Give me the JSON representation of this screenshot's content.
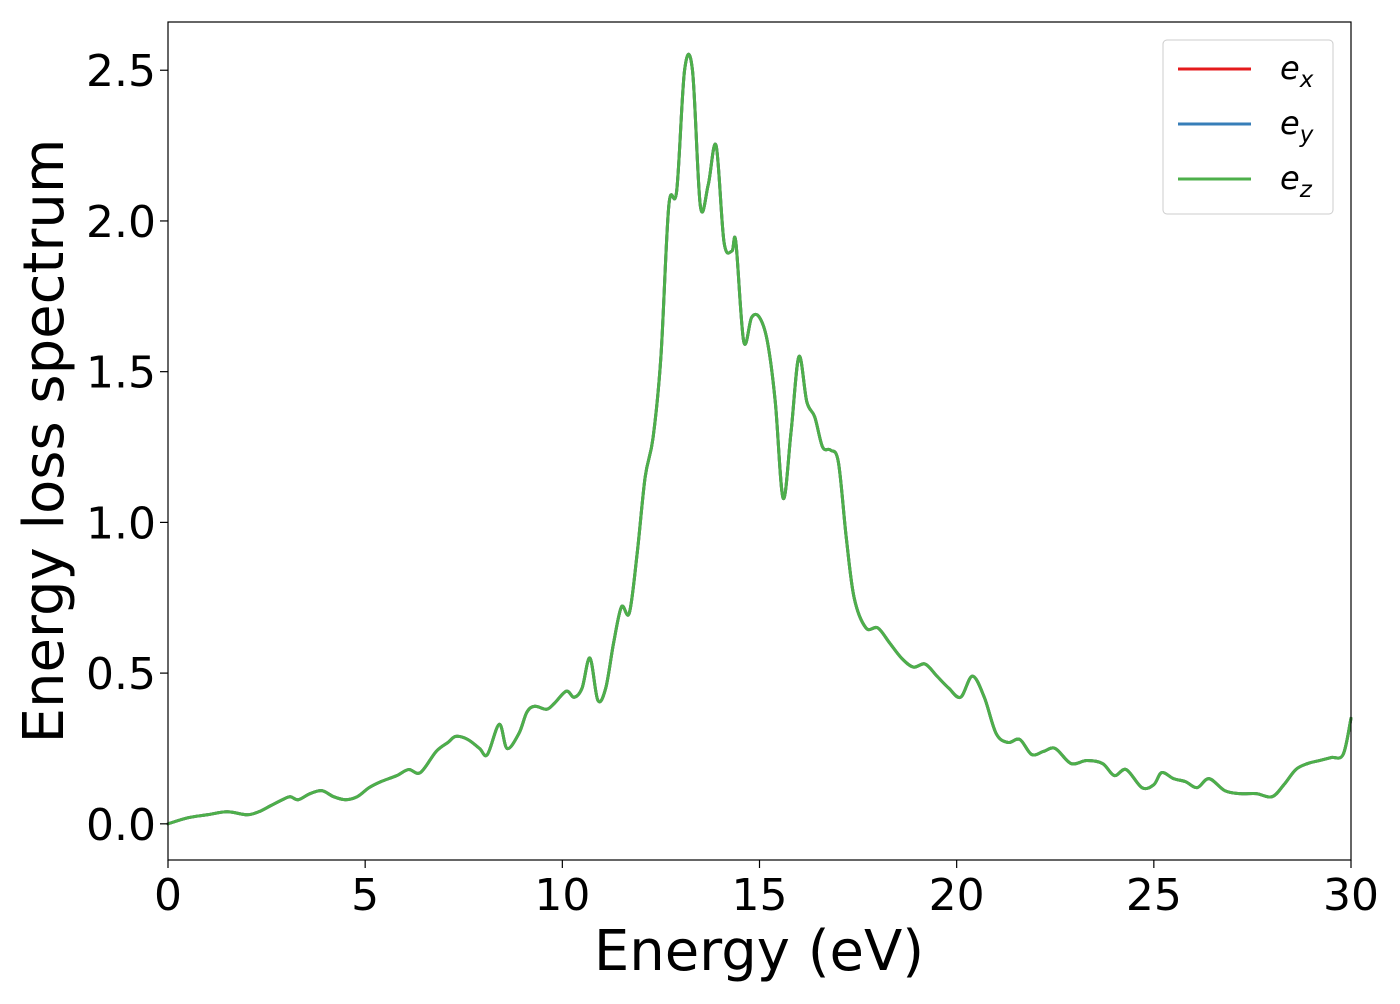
{
  "chart_data": {
    "type": "line",
    "title": "",
    "xlabel": "Energy (eV)",
    "ylabel": "Energy loss spectrum",
    "xlim": [
      0,
      30
    ],
    "ylim": [
      -0.12,
      2.66
    ],
    "xticks": [
      0,
      5,
      10,
      15,
      20,
      25,
      30
    ],
    "xtick_labels": [
      "0",
      "5",
      "10",
      "15",
      "20",
      "25",
      "30"
    ],
    "yticks": [
      0.0,
      0.5,
      1.0,
      1.5,
      2.0,
      2.5
    ],
    "ytick_labels": [
      "0.0",
      "0.5",
      "1.0",
      "1.5",
      "2.0",
      "2.5"
    ],
    "grid": false,
    "legend_position": "top-right",
    "x": [
      0,
      0.5,
      1.0,
      1.5,
      2.0,
      2.3,
      2.6,
      2.9,
      3.1,
      3.3,
      3.6,
      3.9,
      4.2,
      4.5,
      4.8,
      5.1,
      5.4,
      5.8,
      6.1,
      6.4,
      6.8,
      7.1,
      7.3,
      7.6,
      7.9,
      8.1,
      8.4,
      8.6,
      8.9,
      9.1,
      9.3,
      9.6,
      9.8,
      10.1,
      10.3,
      10.5,
      10.7,
      10.9,
      11.1,
      11.3,
      11.5,
      11.7,
      11.9,
      12.1,
      12.3,
      12.5,
      12.7,
      12.9,
      13.1,
      13.3,
      13.5,
      13.7,
      13.9,
      14.1,
      14.3,
      14.4,
      14.6,
      14.8,
      15.0,
      15.2,
      15.4,
      15.6,
      15.8,
      16.0,
      16.2,
      16.4,
      16.6,
      16.8,
      17.0,
      17.2,
      17.4,
      17.7,
      18.0,
      18.3,
      18.6,
      18.9,
      19.2,
      19.5,
      19.8,
      20.1,
      20.4,
      20.7,
      21.0,
      21.3,
      21.6,
      21.9,
      22.2,
      22.5,
      22.9,
      23.3,
      23.7,
      24.0,
      24.3,
      24.7,
      25.0,
      25.2,
      25.5,
      25.8,
      26.1,
      26.4,
      26.8,
      27.2,
      27.6,
      28.0,
      28.3,
      28.6,
      28.9,
      29.2,
      29.5,
      29.8,
      30.0
    ],
    "series": [
      {
        "name": "e_x",
        "legend": {
          "base": "e",
          "sub": "x"
        },
        "color": "#e41a1c",
        "values": [
          0.0,
          0.02,
          0.03,
          0.04,
          0.03,
          0.04,
          0.06,
          0.08,
          0.09,
          0.08,
          0.1,
          0.11,
          0.09,
          0.08,
          0.09,
          0.12,
          0.14,
          0.16,
          0.18,
          0.17,
          0.24,
          0.27,
          0.29,
          0.28,
          0.25,
          0.23,
          0.33,
          0.25,
          0.3,
          0.37,
          0.39,
          0.38,
          0.4,
          0.44,
          0.42,
          0.45,
          0.55,
          0.41,
          0.45,
          0.6,
          0.72,
          0.7,
          0.9,
          1.15,
          1.28,
          1.55,
          2.05,
          2.1,
          2.5,
          2.5,
          2.05,
          2.12,
          2.25,
          1.93,
          1.9,
          1.93,
          1.6,
          1.68,
          1.68,
          1.6,
          1.4,
          1.08,
          1.3,
          1.55,
          1.4,
          1.35,
          1.25,
          1.24,
          1.2,
          0.95,
          0.75,
          0.65,
          0.65,
          0.6,
          0.55,
          0.52,
          0.53,
          0.49,
          0.45,
          0.42,
          0.49,
          0.42,
          0.3,
          0.27,
          0.28,
          0.23,
          0.24,
          0.25,
          0.2,
          0.21,
          0.2,
          0.16,
          0.18,
          0.12,
          0.13,
          0.17,
          0.15,
          0.14,
          0.12,
          0.15,
          0.11,
          0.1,
          0.1,
          0.09,
          0.13,
          0.18,
          0.2,
          0.21,
          0.22,
          0.23,
          0.35
        ]
      },
      {
        "name": "e_y",
        "legend": {
          "base": "e",
          "sub": "y"
        },
        "color": "#377eb8",
        "values": [
          0.0,
          0.02,
          0.03,
          0.04,
          0.03,
          0.04,
          0.06,
          0.08,
          0.09,
          0.08,
          0.1,
          0.11,
          0.09,
          0.08,
          0.09,
          0.12,
          0.14,
          0.16,
          0.18,
          0.17,
          0.24,
          0.27,
          0.29,
          0.28,
          0.25,
          0.23,
          0.33,
          0.25,
          0.3,
          0.37,
          0.39,
          0.38,
          0.4,
          0.44,
          0.42,
          0.45,
          0.55,
          0.41,
          0.45,
          0.6,
          0.72,
          0.7,
          0.9,
          1.15,
          1.28,
          1.55,
          2.05,
          2.1,
          2.5,
          2.5,
          2.05,
          2.12,
          2.25,
          1.93,
          1.9,
          1.93,
          1.6,
          1.68,
          1.68,
          1.6,
          1.4,
          1.08,
          1.3,
          1.55,
          1.4,
          1.35,
          1.25,
          1.24,
          1.2,
          0.95,
          0.75,
          0.65,
          0.65,
          0.6,
          0.55,
          0.52,
          0.53,
          0.49,
          0.45,
          0.42,
          0.49,
          0.42,
          0.3,
          0.27,
          0.28,
          0.23,
          0.24,
          0.25,
          0.2,
          0.21,
          0.2,
          0.16,
          0.18,
          0.12,
          0.13,
          0.17,
          0.15,
          0.14,
          0.12,
          0.15,
          0.11,
          0.1,
          0.1,
          0.09,
          0.13,
          0.18,
          0.2,
          0.21,
          0.22,
          0.23,
          0.35
        ]
      },
      {
        "name": "e_z",
        "legend": {
          "base": "e",
          "sub": "z"
        },
        "color": "#4daf4a",
        "values": [
          0.0,
          0.02,
          0.03,
          0.04,
          0.03,
          0.04,
          0.06,
          0.08,
          0.09,
          0.08,
          0.1,
          0.11,
          0.09,
          0.08,
          0.09,
          0.12,
          0.14,
          0.16,
          0.18,
          0.17,
          0.24,
          0.27,
          0.29,
          0.28,
          0.25,
          0.23,
          0.33,
          0.25,
          0.3,
          0.37,
          0.39,
          0.38,
          0.4,
          0.44,
          0.42,
          0.45,
          0.55,
          0.41,
          0.45,
          0.6,
          0.72,
          0.7,
          0.9,
          1.15,
          1.28,
          1.55,
          2.05,
          2.1,
          2.5,
          2.5,
          2.05,
          2.12,
          2.25,
          1.93,
          1.9,
          1.93,
          1.6,
          1.68,
          1.68,
          1.6,
          1.4,
          1.08,
          1.3,
          1.55,
          1.4,
          1.35,
          1.25,
          1.24,
          1.2,
          0.95,
          0.75,
          0.65,
          0.65,
          0.6,
          0.55,
          0.52,
          0.53,
          0.49,
          0.45,
          0.42,
          0.49,
          0.42,
          0.3,
          0.27,
          0.28,
          0.23,
          0.24,
          0.25,
          0.2,
          0.21,
          0.2,
          0.16,
          0.18,
          0.12,
          0.13,
          0.17,
          0.15,
          0.14,
          0.12,
          0.15,
          0.11,
          0.1,
          0.1,
          0.09,
          0.13,
          0.18,
          0.2,
          0.21,
          0.22,
          0.23,
          0.35
        ]
      }
    ]
  }
}
